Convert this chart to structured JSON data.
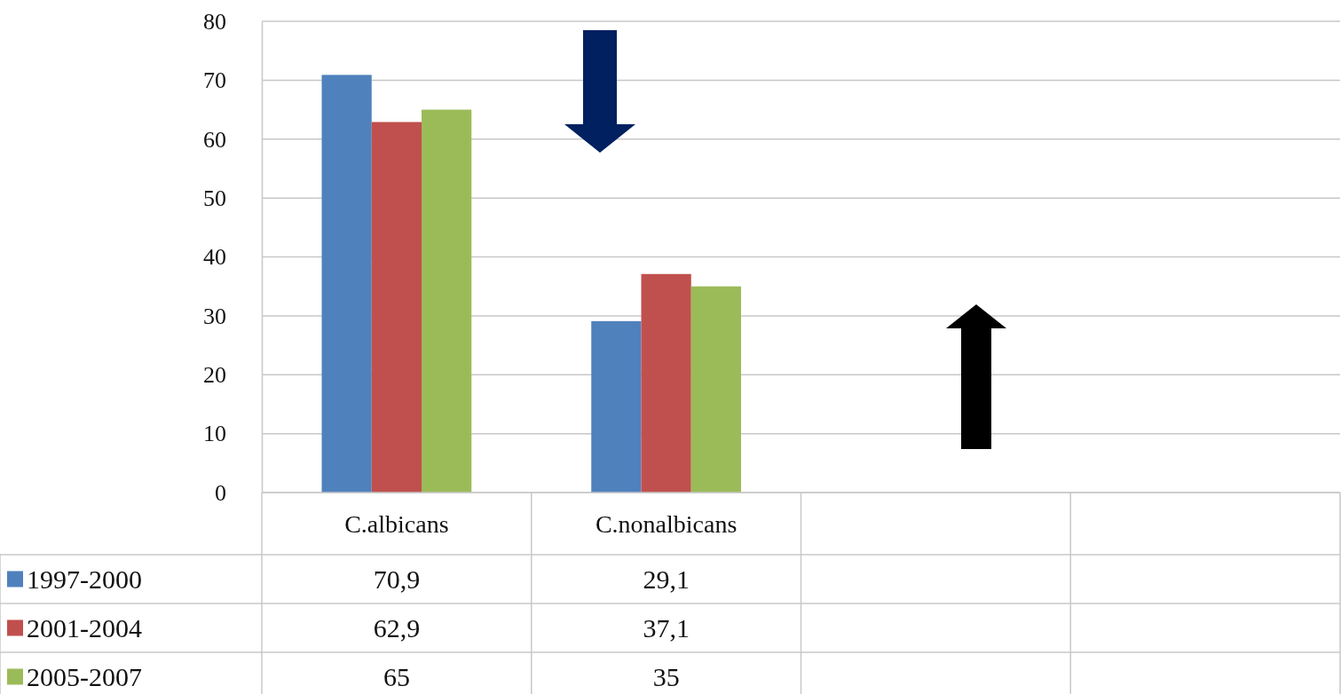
{
  "chart_data": {
    "type": "bar",
    "categories": [
      "C.albicans",
      "C.nonalbicans",
      null,
      null
    ],
    "series": [
      {
        "name": "1997-2000",
        "color": "#4f81bd",
        "values": [
          70.9,
          29.1,
          null,
          null
        ],
        "value_labels": [
          "70,9",
          "29,1",
          null,
          null
        ]
      },
      {
        "name": "2001-2004",
        "color": "#c0504d",
        "values": [
          62.9,
          37.1,
          null,
          null
        ],
        "value_labels": [
          "62,9",
          "37,1",
          null,
          null
        ]
      },
      {
        "name": "2005-2007",
        "color": "#9bbb59",
        "values": [
          65,
          35,
          null,
          null
        ],
        "value_labels": [
          "65",
          "35",
          null,
          null
        ]
      }
    ],
    "ylim": [
      0,
      80
    ],
    "yticks": [
      0,
      10,
      20,
      30,
      40,
      50,
      60,
      70,
      80
    ],
    "grid": "y",
    "legend": "bottom left"
  }
}
